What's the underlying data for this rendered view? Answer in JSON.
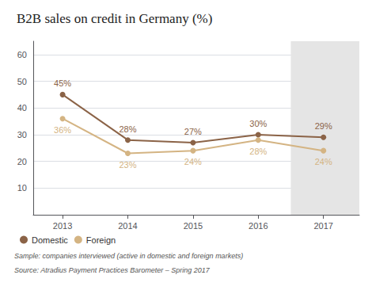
{
  "chart_data": {
    "type": "line",
    "title": "B2B sales on credit in Germany (%)",
    "x": [
      2013,
      2014,
      2015,
      2016,
      2017
    ],
    "series": [
      {
        "name": "Domestic",
        "color": "#8B6347",
        "values": [
          45,
          28,
          27,
          30,
          29
        ],
        "value_labels": [
          "45%",
          "28%",
          "27%",
          "30%",
          "29%"
        ],
        "marker": "circle",
        "line_style": "solid"
      },
      {
        "name": "Foreign",
        "color": "#D4B483",
        "values": [
          36,
          23,
          24,
          28,
          24
        ],
        "value_labels": [
          "36%",
          "23%",
          "24%",
          "28%",
          "24%"
        ],
        "marker": "circle",
        "line_style": "solid"
      }
    ],
    "data_labels": true,
    "xlim": [
      2012.55,
      2017.55
    ],
    "xticks": [
      2013,
      2014,
      2015,
      2016,
      2017
    ],
    "ylim": [
      0,
      65
    ],
    "yticks": [
      10,
      20,
      30,
      40,
      50,
      60
    ],
    "grid": true,
    "legend": "bottom-left",
    "shaded_x": [
      2016.5,
      2017.55
    ],
    "shaded_color": "#E5E5E5",
    "footnotes": [
      "Sample: companies interviewed (active in domestic and foreign markets)",
      "Source: Atradius Payment Practices Barometer – Spring 2017"
    ]
  }
}
